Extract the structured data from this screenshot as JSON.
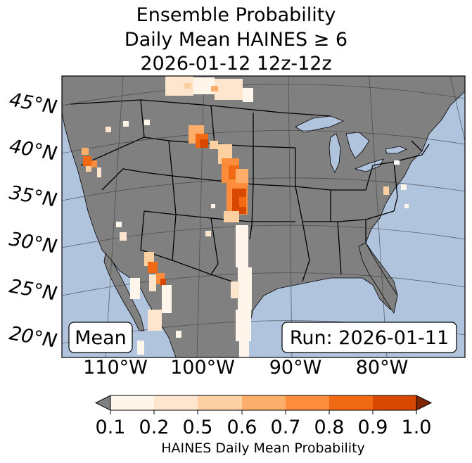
{
  "title": {
    "line1": "Ensemble Probability",
    "line2": "Daily Mean HAINES ≥ 6",
    "line3": "2026-01-12 12z-12z"
  },
  "map": {
    "lat_labels": [
      "45°N",
      "40°N",
      "35°N",
      "30°N",
      "25°N",
      "20°N"
    ],
    "lon_labels": [
      "110°W",
      "100°W",
      "90°W",
      "80°W"
    ],
    "mean_label": "Mean",
    "run_label": "Run: 2026-01-11",
    "colors": {
      "ocean": "#b0c4de",
      "land": "#808080",
      "borders": "#000000"
    }
  },
  "colorbar": {
    "label": "HAINES Daily Mean Probability",
    "ticks": [
      "0.1",
      "0.2",
      "0.5",
      "0.6",
      "0.7",
      "0.8",
      "0.9",
      "1.0"
    ],
    "under_color": "#808080",
    "over_color": "#7f2704",
    "colors": [
      "#fff5eb",
      "#fee6ce",
      "#fdd0a2",
      "#fdae6b",
      "#fd8d3c",
      "#f16913",
      "#d94801"
    ]
  }
}
